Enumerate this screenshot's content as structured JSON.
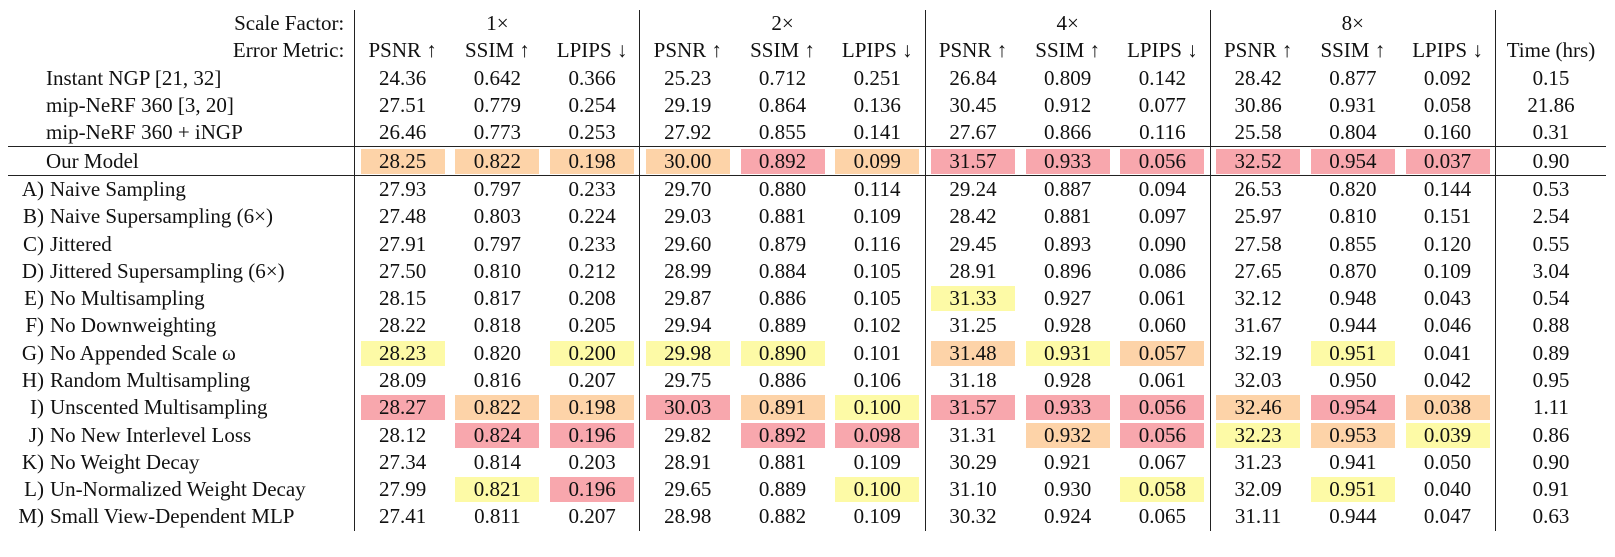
{
  "header": {
    "scale_label": "Scale Factor:",
    "metric_label": "Error Metric:",
    "scales": [
      "1×",
      "2×",
      "4×",
      "8×"
    ],
    "metrics": [
      "PSNR ↑",
      "SSIM ↑",
      "LPIPS ↓"
    ],
    "time_label": "Time (hrs)"
  },
  "colors": {
    "red": "#f8a7ad",
    "orange": "#fdd3a8",
    "yellow": "#fdfaa6"
  },
  "rows": [
    {
      "id": "",
      "name": "Instant NGP [21, 32]",
      "values": [
        "24.36",
        "0.642",
        "0.366",
        "25.23",
        "0.712",
        "0.251",
        "26.84",
        "0.809",
        "0.142",
        "28.42",
        "0.877",
        "0.092"
      ],
      "time": "0.15",
      "hl": [
        "",
        "",
        "",
        "",
        "",
        "",
        "",
        "",
        "",
        "",
        "",
        ""
      ]
    },
    {
      "id": "",
      "name": "mip-NeRF 360 [3, 20]",
      "values": [
        "27.51",
        "0.779",
        "0.254",
        "29.19",
        "0.864",
        "0.136",
        "30.45",
        "0.912",
        "0.077",
        "30.86",
        "0.931",
        "0.058"
      ],
      "time": "21.86",
      "hl": [
        "",
        "",
        "",
        "",
        "",
        "",
        "",
        "",
        "",
        "",
        "",
        ""
      ]
    },
    {
      "id": "",
      "name": "mip-NeRF 360 + iNGP",
      "values": [
        "26.46",
        "0.773",
        "0.253",
        "27.92",
        "0.855",
        "0.141",
        "27.67",
        "0.866",
        "0.116",
        "25.58",
        "0.804",
        "0.160"
      ],
      "time": "0.31",
      "hl": [
        "",
        "",
        "",
        "",
        "",
        "",
        "",
        "",
        "",
        "",
        "",
        ""
      ]
    },
    {
      "id": "",
      "name": "Our Model",
      "values": [
        "28.25",
        "0.822",
        "0.198",
        "30.00",
        "0.892",
        "0.099",
        "31.57",
        "0.933",
        "0.056",
        "32.52",
        "0.954",
        "0.037"
      ],
      "time": "0.90",
      "hl": [
        "orange",
        "orange",
        "orange",
        "orange",
        "red",
        "orange",
        "red",
        "red",
        "red",
        "red",
        "red",
        "red"
      ]
    },
    {
      "id": "A)",
      "name": "Naive Sampling",
      "values": [
        "27.93",
        "0.797",
        "0.233",
        "29.70",
        "0.880",
        "0.114",
        "29.24",
        "0.887",
        "0.094",
        "26.53",
        "0.820",
        "0.144"
      ],
      "time": "0.53",
      "hl": [
        "",
        "",
        "",
        "",
        "",
        "",
        "",
        "",
        "",
        "",
        "",
        ""
      ]
    },
    {
      "id": "B)",
      "name": "Naive Supersampling (6×)",
      "values": [
        "27.48",
        "0.803",
        "0.224",
        "29.03",
        "0.881",
        "0.109",
        "28.42",
        "0.881",
        "0.097",
        "25.97",
        "0.810",
        "0.151"
      ],
      "time": "2.54",
      "hl": [
        "",
        "",
        "",
        "",
        "",
        "",
        "",
        "",
        "",
        "",
        "",
        ""
      ]
    },
    {
      "id": "C)",
      "name": "Jittered",
      "values": [
        "27.91",
        "0.797",
        "0.233",
        "29.60",
        "0.879",
        "0.116",
        "29.45",
        "0.893",
        "0.090",
        "27.58",
        "0.855",
        "0.120"
      ],
      "time": "0.55",
      "hl": [
        "",
        "",
        "",
        "",
        "",
        "",
        "",
        "",
        "",
        "",
        "",
        ""
      ]
    },
    {
      "id": "D)",
      "name": "Jittered Supersampling (6×)",
      "values": [
        "27.50",
        "0.810",
        "0.212",
        "28.99",
        "0.884",
        "0.105",
        "28.91",
        "0.896",
        "0.086",
        "27.65",
        "0.870",
        "0.109"
      ],
      "time": "3.04",
      "hl": [
        "",
        "",
        "",
        "",
        "",
        "",
        "",
        "",
        "",
        "",
        "",
        ""
      ]
    },
    {
      "id": "E)",
      "name": "No Multisampling",
      "values": [
        "28.15",
        "0.817",
        "0.208",
        "29.87",
        "0.886",
        "0.105",
        "31.33",
        "0.927",
        "0.061",
        "32.12",
        "0.948",
        "0.043"
      ],
      "time": "0.54",
      "hl": [
        "",
        "",
        "",
        "",
        "",
        "",
        "yellow",
        "",
        "",
        "",
        "",
        ""
      ]
    },
    {
      "id": "F)",
      "name": "No Downweighting",
      "values": [
        "28.22",
        "0.818",
        "0.205",
        "29.94",
        "0.889",
        "0.102",
        "31.25",
        "0.928",
        "0.060",
        "31.67",
        "0.944",
        "0.046"
      ],
      "time": "0.88",
      "hl": [
        "",
        "",
        "",
        "",
        "",
        "",
        "",
        "",
        "",
        "",
        "",
        ""
      ]
    },
    {
      "id": "G)",
      "name": "No Appended Scale ω",
      "values": [
        "28.23",
        "0.820",
        "0.200",
        "29.98",
        "0.890",
        "0.101",
        "31.48",
        "0.931",
        "0.057",
        "32.19",
        "0.951",
        "0.041"
      ],
      "time": "0.89",
      "hl": [
        "yellow",
        "",
        "yellow",
        "yellow",
        "yellow",
        "",
        "orange",
        "yellow",
        "orange",
        "",
        "yellow",
        ""
      ]
    },
    {
      "id": "H)",
      "name": "Random Multisampling",
      "values": [
        "28.09",
        "0.816",
        "0.207",
        "29.75",
        "0.886",
        "0.106",
        "31.18",
        "0.928",
        "0.061",
        "32.03",
        "0.950",
        "0.042"
      ],
      "time": "0.95",
      "hl": [
        "",
        "",
        "",
        "",
        "",
        "",
        "",
        "",
        "",
        "",
        "",
        ""
      ]
    },
    {
      "id": "I)",
      "name": "Unscented Multisampling",
      "values": [
        "28.27",
        "0.822",
        "0.198",
        "30.03",
        "0.891",
        "0.100",
        "31.57",
        "0.933",
        "0.056",
        "32.46",
        "0.954",
        "0.038"
      ],
      "time": "1.11",
      "hl": [
        "red",
        "orange",
        "orange",
        "red",
        "orange",
        "yellow",
        "red",
        "red",
        "red",
        "orange",
        "red",
        "orange"
      ]
    },
    {
      "id": "J)",
      "name": "No New Interlevel Loss",
      "values": [
        "28.12",
        "0.824",
        "0.196",
        "29.82",
        "0.892",
        "0.098",
        "31.31",
        "0.932",
        "0.056",
        "32.23",
        "0.953",
        "0.039"
      ],
      "time": "0.86",
      "hl": [
        "",
        "red",
        "red",
        "",
        "red",
        "red",
        "",
        "orange",
        "red",
        "yellow",
        "orange",
        "yellow"
      ]
    },
    {
      "id": "K)",
      "name": "No Weight Decay",
      "values": [
        "27.34",
        "0.814",
        "0.203",
        "28.91",
        "0.881",
        "0.109",
        "30.29",
        "0.921",
        "0.067",
        "31.23",
        "0.941",
        "0.050"
      ],
      "time": "0.90",
      "hl": [
        "",
        "",
        "",
        "",
        "",
        "",
        "",
        "",
        "",
        "",
        "",
        ""
      ]
    },
    {
      "id": "L)",
      "name": "Un-Normalized Weight Decay",
      "values": [
        "27.99",
        "0.821",
        "0.196",
        "29.65",
        "0.889",
        "0.100",
        "31.10",
        "0.930",
        "0.058",
        "32.09",
        "0.951",
        "0.040"
      ],
      "time": "0.91",
      "hl": [
        "",
        "yellow",
        "red",
        "",
        "",
        "yellow",
        "",
        "",
        "yellow",
        "",
        "yellow",
        ""
      ]
    },
    {
      "id": "M)",
      "name": "Small View-Dependent MLP",
      "values": [
        "27.41",
        "0.811",
        "0.207",
        "28.98",
        "0.882",
        "0.109",
        "30.32",
        "0.924",
        "0.065",
        "31.11",
        "0.944",
        "0.047"
      ],
      "time": "0.63",
      "hl": [
        "",
        "",
        "",
        "",
        "",
        "",
        "",
        "",
        "",
        "",
        "",
        ""
      ]
    }
  ]
}
